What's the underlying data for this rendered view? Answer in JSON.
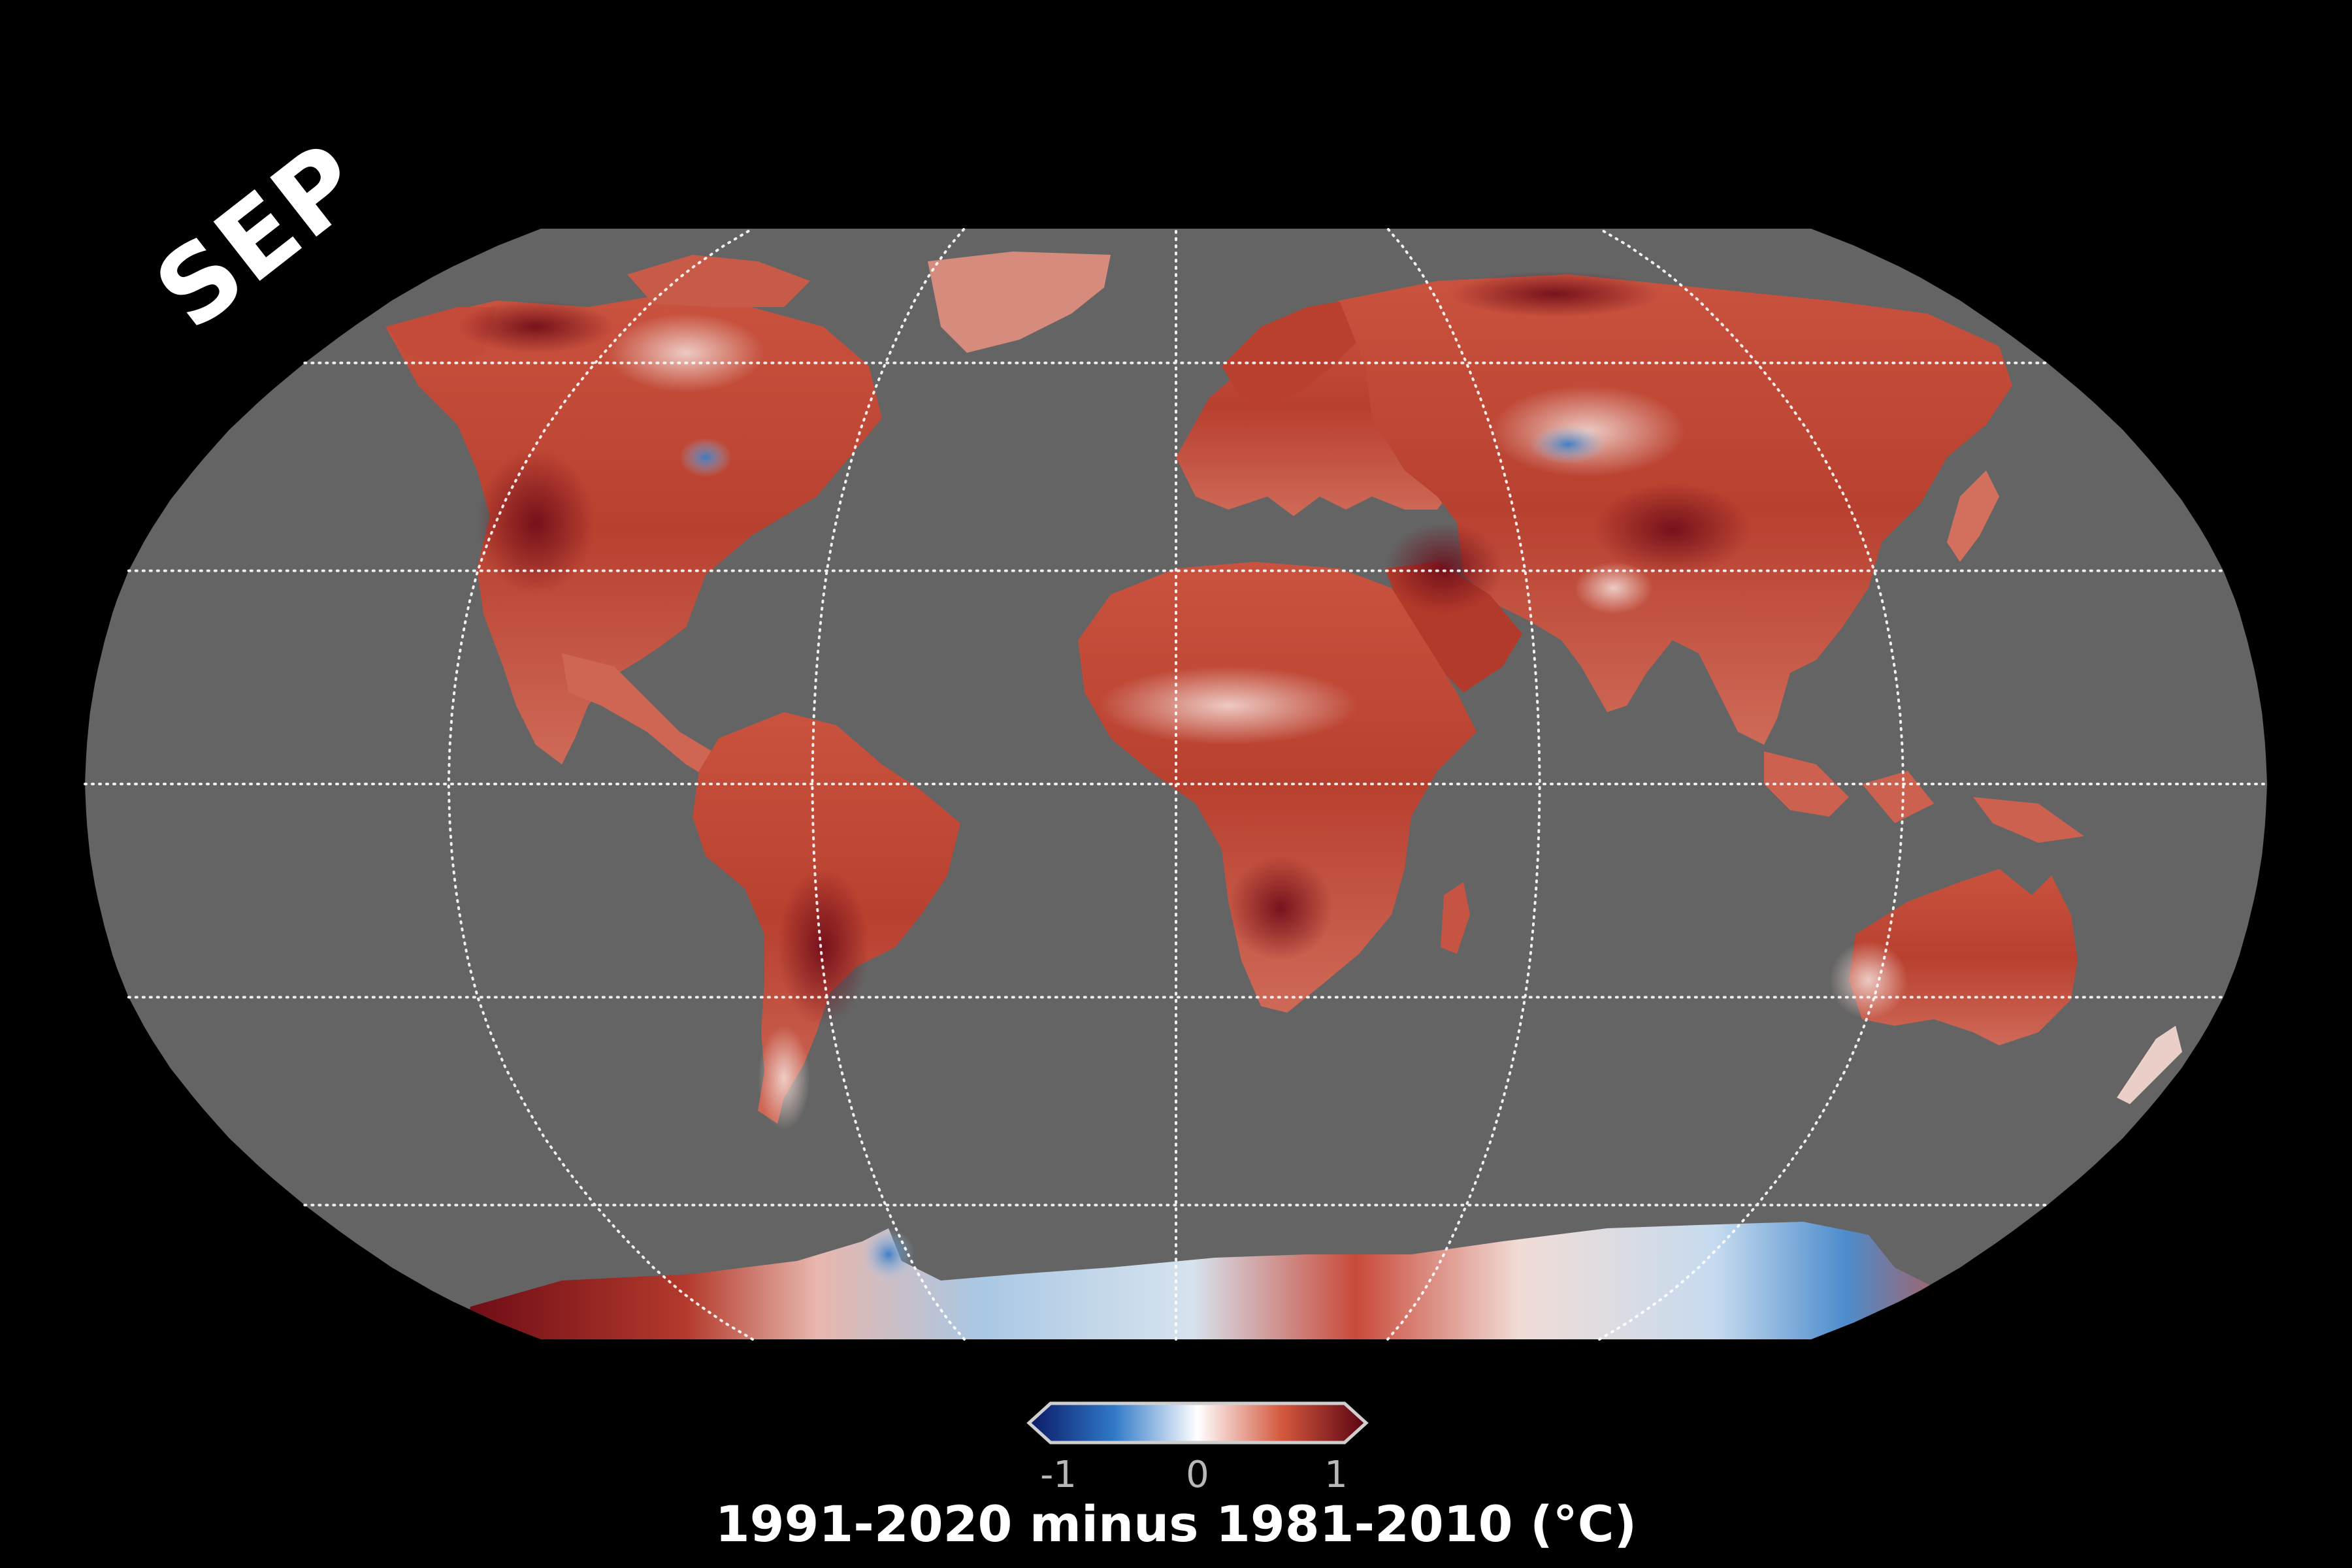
{
  "month_label": "SEP",
  "colorbar": {
    "ticks": [
      "-1",
      "0",
      "1"
    ],
    "title": "1991-2020 minus 1981-2010 (°C)",
    "colors": [
      "#0b1a66",
      "#2f78c7",
      "#ffffff",
      "#d4583e",
      "#5a0312"
    ]
  },
  "map": {
    "projection": "robinson",
    "ocean_color": "#646464",
    "graticule_style": "dotted white",
    "graticule_lat_step_deg": 30,
    "graticule_lon_step_deg": 60
  }
}
